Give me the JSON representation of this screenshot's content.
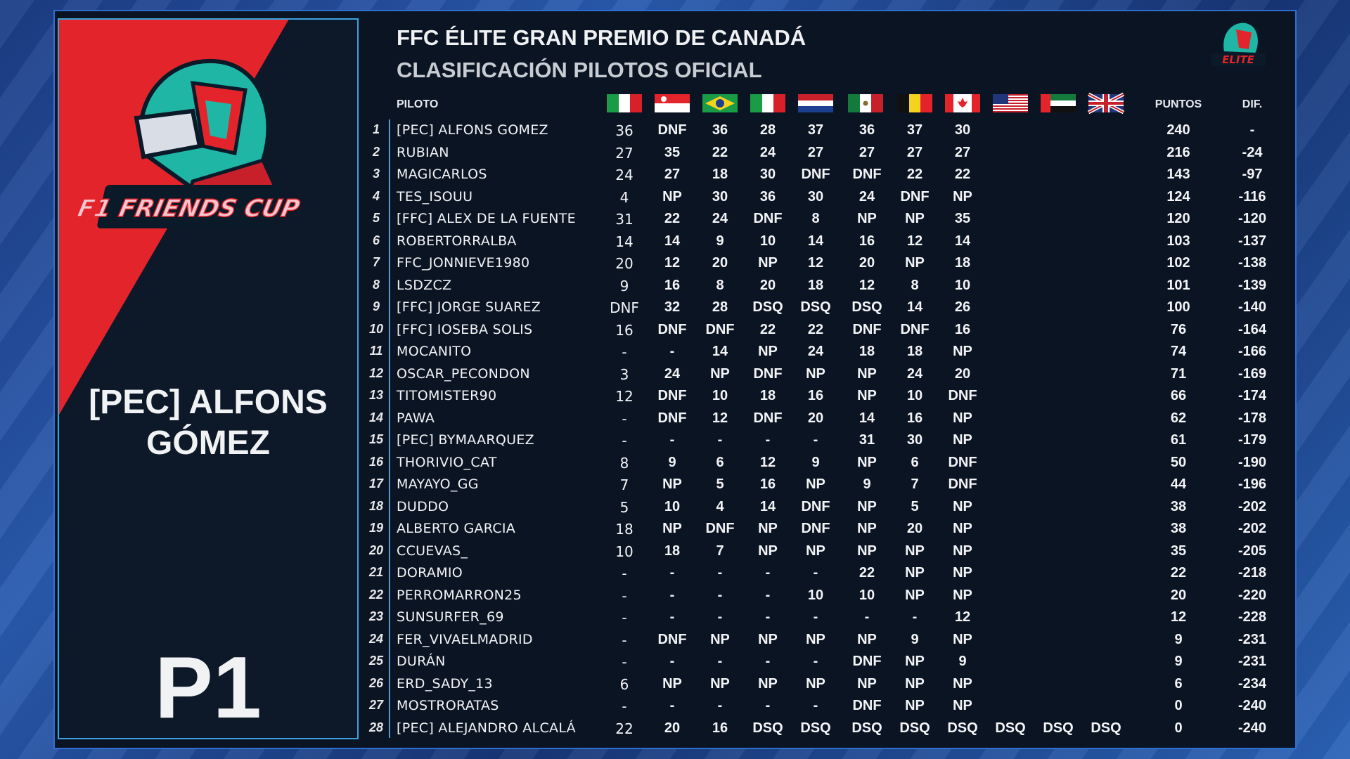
{
  "title": "FFC ÉLITE GRAN PREMIO DE CANADÁ",
  "subtitle": "CLASIFICACIÓN PILOTOS OFICIAL",
  "logo_text": "F1 FRIENDS CUP",
  "elite_logo_text": "ELITE",
  "featured": {
    "name_line1": "[PEC] ALFONS",
    "name_line2": "GÓMEZ",
    "position": "P1"
  },
  "columns": {
    "driver": "PILOTO",
    "points": "PUNTOS",
    "diff": "DIF."
  },
  "flags": [
    "italy-flag",
    "singapore-flag",
    "brazil-flag",
    "italy-flag",
    "netherlands-flag",
    "mexico-flag",
    "belgium-flag",
    "canada-flag",
    "usa-flag",
    "uae-flag",
    "uk-flag"
  ],
  "rows": [
    {
      "pos": "1",
      "name": "[PEC] ALFONS GOMEZ",
      "r": [
        "36",
        "DNF",
        "36",
        "28",
        "37",
        "36",
        "37",
        "30",
        "",
        "",
        ""
      ],
      "pts": "240",
      "dif": "-"
    },
    {
      "pos": "2",
      "name": "RUBIAN",
      "r": [
        "27",
        "35",
        "22",
        "24",
        "27",
        "27",
        "27",
        "27",
        "",
        "",
        ""
      ],
      "pts": "216",
      "dif": "-24"
    },
    {
      "pos": "3",
      "name": "MAGICARLOS",
      "r": [
        "24",
        "27",
        "18",
        "30",
        "DNF",
        "DNF",
        "22",
        "22",
        "",
        "",
        ""
      ],
      "pts": "143",
      "dif": "-97"
    },
    {
      "pos": "4",
      "name": "TES_ISOUU",
      "r": [
        "4",
        "NP",
        "30",
        "36",
        "30",
        "24",
        "DNF",
        "NP",
        "",
        "",
        ""
      ],
      "pts": "124",
      "dif": "-116"
    },
    {
      "pos": "5",
      "name": "[FFC] ALEX DE LA FUENTE",
      "r": [
        "31",
        "22",
        "24",
        "DNF",
        "8",
        "NP",
        "NP",
        "35",
        "",
        "",
        ""
      ],
      "pts": "120",
      "dif": "-120"
    },
    {
      "pos": "6",
      "name": "ROBERTORRALBA",
      "r": [
        "14",
        "14",
        "9",
        "10",
        "14",
        "16",
        "12",
        "14",
        "",
        "",
        ""
      ],
      "pts": "103",
      "dif": "-137"
    },
    {
      "pos": "7",
      "name": "FFC_JONNIEVE1980",
      "r": [
        "20",
        "12",
        "20",
        "NP",
        "12",
        "20",
        "NP",
        "18",
        "",
        "",
        ""
      ],
      "pts": "102",
      "dif": "-138"
    },
    {
      "pos": "8",
      "name": "LSDZCZ",
      "r": [
        "9",
        "16",
        "8",
        "20",
        "18",
        "12",
        "8",
        "10",
        "",
        "",
        ""
      ],
      "pts": "101",
      "dif": "-139"
    },
    {
      "pos": "9",
      "name": "[FFC] JORGE SUAREZ",
      "r": [
        "DNF",
        "32",
        "28",
        "DSQ",
        "DSQ",
        "DSQ",
        "14",
        "26",
        "",
        "",
        ""
      ],
      "pts": "100",
      "dif": "-140"
    },
    {
      "pos": "10",
      "name": "[FFC] IOSEBA SOLIS",
      "r": [
        "16",
        "DNF",
        "DNF",
        "22",
        "22",
        "DNF",
        "DNF",
        "16",
        "",
        "",
        ""
      ],
      "pts": "76",
      "dif": "-164"
    },
    {
      "pos": "11",
      "name": "MOCANITO",
      "r": [
        "-",
        "-",
        "14",
        "NP",
        "24",
        "18",
        "18",
        "NP",
        "",
        "",
        ""
      ],
      "pts": "74",
      "dif": "-166"
    },
    {
      "pos": "12",
      "name": "OSCAR_PECONDON",
      "r": [
        "3",
        "24",
        "NP",
        "DNF",
        "NP",
        "NP",
        "24",
        "20",
        "",
        "",
        ""
      ],
      "pts": "71",
      "dif": "-169"
    },
    {
      "pos": "13",
      "name": "TITOMISTER90",
      "r": [
        "12",
        "DNF",
        "10",
        "18",
        "16",
        "NP",
        "10",
        "DNF",
        "",
        "",
        ""
      ],
      "pts": "66",
      "dif": "-174"
    },
    {
      "pos": "14",
      "name": "PAWA",
      "r": [
        "-",
        "DNF",
        "12",
        "DNF",
        "20",
        "14",
        "16",
        "NP",
        "",
        "",
        ""
      ],
      "pts": "62",
      "dif": "-178"
    },
    {
      "pos": "15",
      "name": "[PEC] BYMAARQUEZ",
      "r": [
        "-",
        "-",
        "-",
        "-",
        "-",
        "31",
        "30",
        "NP",
        "",
        "",
        ""
      ],
      "pts": "61",
      "dif": "-179"
    },
    {
      "pos": "16",
      "name": "THORIVIO_CAT",
      "r": [
        "8",
        "9",
        "6",
        "12",
        "9",
        "NP",
        "6",
        "DNF",
        "",
        "",
        ""
      ],
      "pts": "50",
      "dif": "-190"
    },
    {
      "pos": "17",
      "name": "MAYAYO_GG",
      "r": [
        "7",
        "NP",
        "5",
        "16",
        "NP",
        "9",
        "7",
        "DNF",
        "",
        "",
        ""
      ],
      "pts": "44",
      "dif": "-196"
    },
    {
      "pos": "18",
      "name": "DUDDO",
      "r": [
        "5",
        "10",
        "4",
        "14",
        "DNF",
        "NP",
        "5",
        "NP",
        "",
        "",
        ""
      ],
      "pts": "38",
      "dif": "-202"
    },
    {
      "pos": "19",
      "name": "ALBERTO GARCIA",
      "r": [
        "18",
        "NP",
        "DNF",
        "NP",
        "DNF",
        "NP",
        "20",
        "NP",
        "",
        "",
        ""
      ],
      "pts": "38",
      "dif": "-202"
    },
    {
      "pos": "20",
      "name": "CCUEVAS_",
      "r": [
        "10",
        "18",
        "7",
        "NP",
        "NP",
        "NP",
        "NP",
        "NP",
        "",
        "",
        ""
      ],
      "pts": "35",
      "dif": "-205"
    },
    {
      "pos": "21",
      "name": "DORAMIO",
      "r": [
        "-",
        "-",
        "-",
        "-",
        "-",
        "22",
        "NP",
        "NP",
        "",
        "",
        ""
      ],
      "pts": "22",
      "dif": "-218"
    },
    {
      "pos": "22",
      "name": "PERROMARRON25",
      "r": [
        "-",
        "-",
        "-",
        "-",
        "10",
        "10",
        "NP",
        "NP",
        "",
        "",
        ""
      ],
      "pts": "20",
      "dif": "-220"
    },
    {
      "pos": "23",
      "name": "SUNSURFER_69",
      "r": [
        "-",
        "-",
        "-",
        "-",
        "-",
        "-",
        "-",
        "12",
        "",
        "",
        ""
      ],
      "pts": "12",
      "dif": "-228"
    },
    {
      "pos": "24",
      "name": "FER_VIVAELMADRID",
      "r": [
        "-",
        "DNF",
        "NP",
        "NP",
        "NP",
        "NP",
        "9",
        "NP",
        "",
        "",
        ""
      ],
      "pts": "9",
      "dif": "-231"
    },
    {
      "pos": "25",
      "name": "DURÁN",
      "r": [
        "-",
        "-",
        "-",
        "-",
        "-",
        "DNF",
        "NP",
        "9",
        "",
        "",
        ""
      ],
      "pts": "9",
      "dif": "-231"
    },
    {
      "pos": "26",
      "name": "ERD_SADY_13",
      "r": [
        "6",
        "NP",
        "NP",
        "NP",
        "NP",
        "NP",
        "NP",
        "NP",
        "",
        "",
        ""
      ],
      "pts": "6",
      "dif": "-234"
    },
    {
      "pos": "27",
      "name": "MOSTRORATAS",
      "r": [
        "-",
        "-",
        "-",
        "-",
        "-",
        "DNF",
        "NP",
        "NP",
        "",
        "",
        ""
      ],
      "pts": "0",
      "dif": "-240"
    },
    {
      "pos": "28",
      "name": "[PEC] ALEJANDRO ALCALÁ",
      "r": [
        "22",
        "20",
        "16",
        "DSQ",
        "DSQ",
        "DSQ",
        "DSQ",
        "DSQ",
        "DSQ",
        "DSQ",
        "DSQ"
      ],
      "pts": "0",
      "dif": "-240"
    }
  ]
}
